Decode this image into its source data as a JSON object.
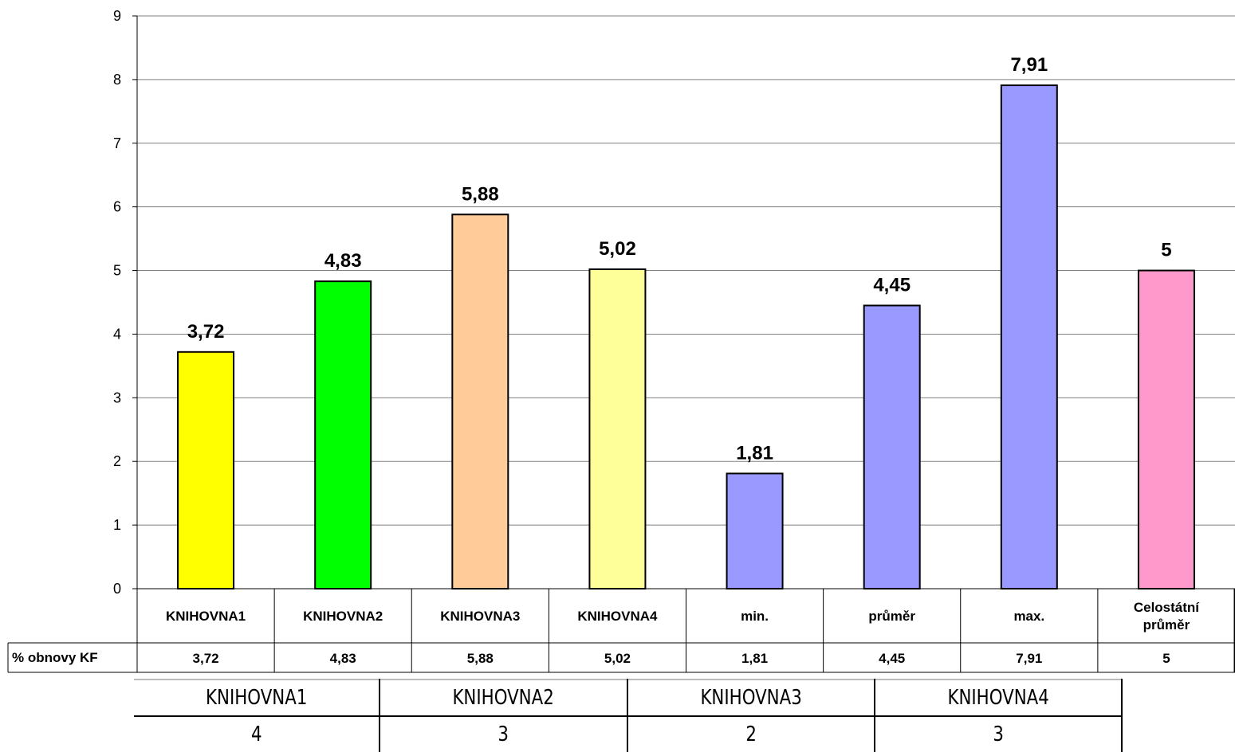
{
  "chart_data": {
    "type": "bar",
    "categories": [
      [
        "KNIHOVNA1"
      ],
      [
        "KNIHOVNA2"
      ],
      [
        "KNIHOVNA3"
      ],
      [
        "KNIHOVNA4"
      ],
      [
        "min."
      ],
      [
        "průměr"
      ],
      [
        "max."
      ],
      [
        "Celostátní",
        "průměr"
      ]
    ],
    "values": [
      3.72,
      4.83,
      5.88,
      5.02,
      1.81,
      4.45,
      7.91,
      5
    ],
    "value_labels": [
      "3,72",
      "4,83",
      "5,88",
      "5,02",
      "1,81",
      "4,45",
      "7,91",
      "5"
    ],
    "colors": [
      "#ffff00",
      "#00ff00",
      "#ffcc99",
      "#ffff99",
      "#9999ff",
      "#9999ff",
      "#9999ff",
      "#ff99cc"
    ],
    "ylim": [
      0,
      9
    ],
    "yticks": [
      "0",
      "1",
      "2",
      "3",
      "4",
      "5",
      "6",
      "7",
      "8",
      "9"
    ],
    "grid": true,
    "table_row_label": "% obnovy KF"
  },
  "bottom_table": {
    "headers": [
      "KNIHOVNA1",
      "KNIHOVNA2",
      "KNIHOVNA3",
      "KNIHOVNA4"
    ],
    "values": [
      "4",
      "3",
      "2",
      "3"
    ]
  }
}
